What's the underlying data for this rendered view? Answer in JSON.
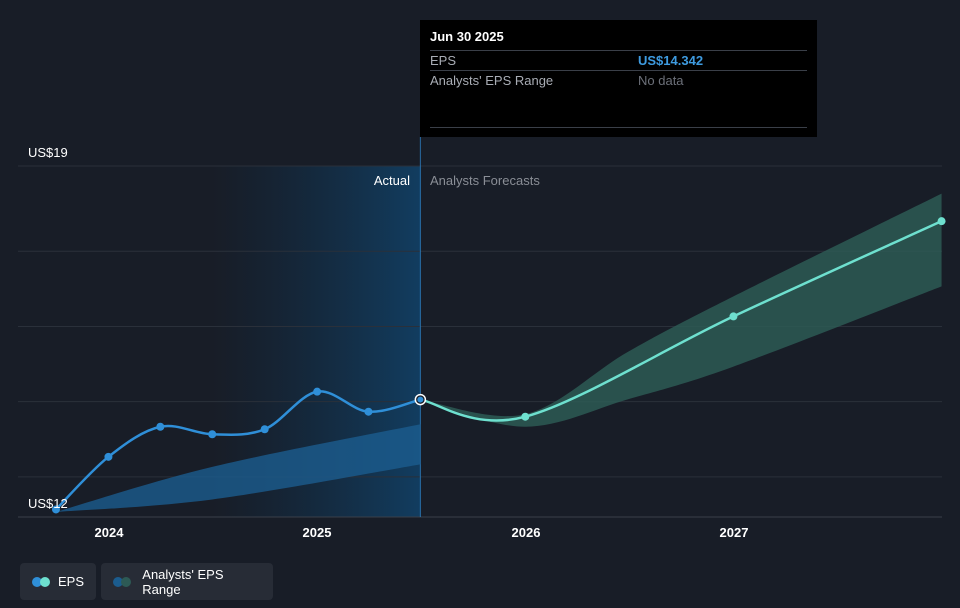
{
  "tooltip": {
    "date": "Jun 30 2025",
    "rows": [
      {
        "label": "EPS",
        "value": "US$14.342"
      },
      {
        "label": "Analysts' EPS Range",
        "value": "No data"
      }
    ]
  },
  "labels": {
    "actual": "Actual",
    "forecast": "Analysts Forecasts"
  },
  "legend": [
    {
      "label": "EPS"
    },
    {
      "label": "Analysts' EPS Range"
    }
  ],
  "colors": {
    "background": "#181d27",
    "actual_line": "#2f8fd8",
    "forecast_line": "#6ee0cf",
    "forecast_band": "#2d5a55",
    "actual_band": "#1b5c8e"
  },
  "chart_data": {
    "type": "line",
    "y_tick_labels": [
      "US$19",
      "US$12"
    ],
    "ylim": [
      12,
      19
    ],
    "x_tick_labels": [
      "2024",
      "2025",
      "2026",
      "2027"
    ],
    "divider_date": "2025-06-30",
    "series": [
      {
        "name": "EPS",
        "segment": "actual",
        "points": [
          {
            "x": "2023-09-30",
            "y": 12.15
          },
          {
            "x": "2023-12-31",
            "y": 13.2
          },
          {
            "x": "2024-03-31",
            "y": 13.8
          },
          {
            "x": "2024-06-30",
            "y": 13.65
          },
          {
            "x": "2024-09-30",
            "y": 13.75
          },
          {
            "x": "2024-12-31",
            "y": 14.5
          },
          {
            "x": "2025-03-31",
            "y": 14.1
          },
          {
            "x": "2025-06-30",
            "y": 14.342
          }
        ]
      },
      {
        "name": "EPS",
        "segment": "forecast",
        "points": [
          {
            "x": "2025-06-30",
            "y": 14.342
          },
          {
            "x": "2025-12-31",
            "y": 14.0
          },
          {
            "x": "2026-12-31",
            "y": 16.0
          },
          {
            "x": "2027-12-31",
            "y": 17.9
          }
        ]
      },
      {
        "name": "Analysts' EPS Range",
        "segment": "forecast",
        "upper": [
          {
            "x": "2025-06-30",
            "y": 14.342
          },
          {
            "x": "2025-12-31",
            "y": 14.05
          },
          {
            "x": "2026-06-30",
            "y": 15.3
          },
          {
            "x": "2026-12-31",
            "y": 16.4
          },
          {
            "x": "2027-12-31",
            "y": 18.45
          }
        ],
        "lower": [
          {
            "x": "2025-06-30",
            "y": 14.342
          },
          {
            "x": "2025-12-31",
            "y": 13.8
          },
          {
            "x": "2026-06-30",
            "y": 14.35
          },
          {
            "x": "2026-12-31",
            "y": 15.0
          },
          {
            "x": "2027-12-31",
            "y": 16.6
          }
        ]
      },
      {
        "name": "Analysts' EPS Range",
        "segment": "actual",
        "upper": [
          {
            "x": "2023-09-30",
            "y": 12.1
          },
          {
            "x": "2024-06-30",
            "y": 13.0
          },
          {
            "x": "2025-06-30",
            "y": 13.85
          }
        ],
        "lower": [
          {
            "x": "2023-09-30",
            "y": 12.1
          },
          {
            "x": "2024-06-30",
            "y": 12.35
          },
          {
            "x": "2025-06-30",
            "y": 13.05
          }
        ]
      }
    ],
    "grid": true
  }
}
